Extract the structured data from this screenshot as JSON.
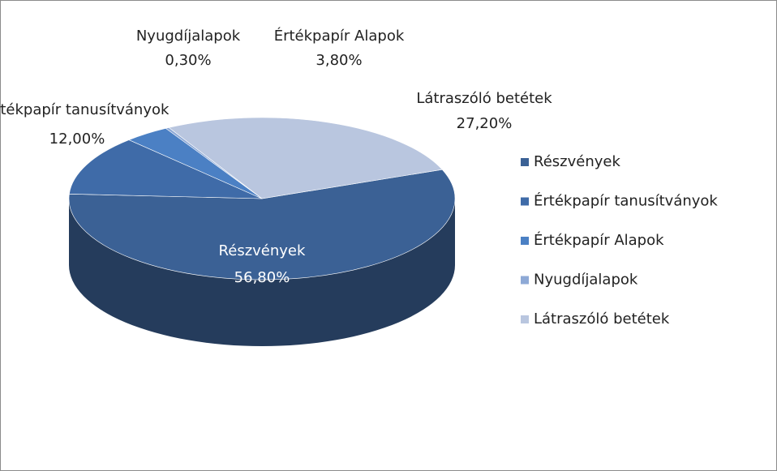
{
  "chart_data": {
    "type": "pie3d",
    "categories": [
      "Részvények",
      "Értékpapír tanusítványok",
      "Értékpapír Alapok",
      "Nyugdíjalapok",
      "Látraszóló betétek"
    ],
    "values": [
      56.8,
      12.0,
      3.8,
      0.3,
      27.2
    ],
    "value_labels": [
      "56,80%",
      "12,00%",
      "3,80%",
      "0,30%",
      "27,20%"
    ],
    "colors": [
      "#3b6195",
      "#3f6ba8",
      "#4b80c4",
      "#8ea9d6",
      "#b9c6df"
    ],
    "legend": "right"
  }
}
